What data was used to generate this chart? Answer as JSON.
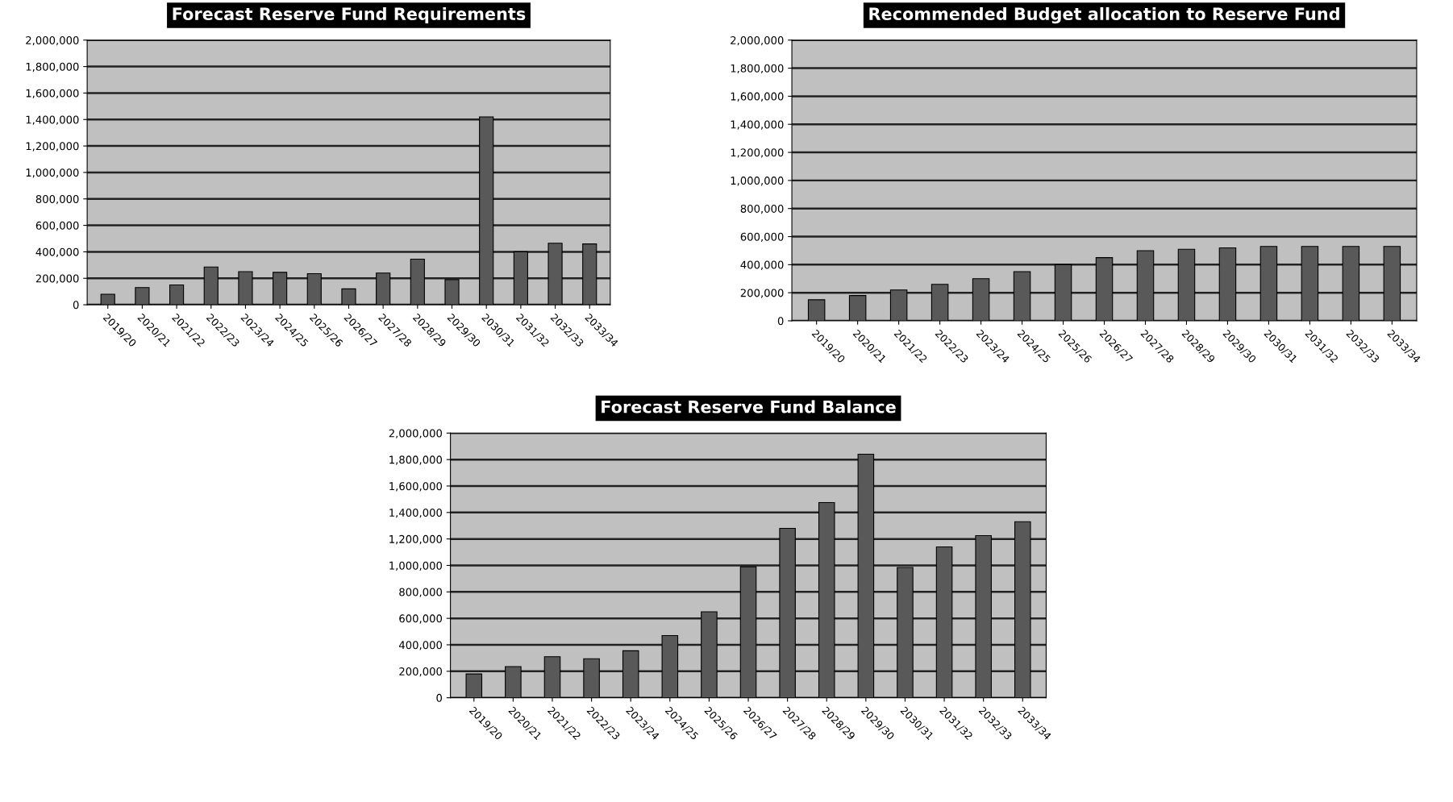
{
  "chart_data": [
    {
      "type": "bar",
      "title": "Forecast Reserve Fund Requirements",
      "categories": [
        "2019/20",
        "2020/21",
        "2021/22",
        "2022/23",
        "2023/24",
        "2024/25",
        "2025/26",
        "2026/27",
        "2027/28",
        "2028/29",
        "2029/30",
        "2030/31",
        "2031/32",
        "2032/33",
        "2033/34"
      ],
      "values": [
        80000,
        130000,
        150000,
        285000,
        250000,
        245000,
        235000,
        120000,
        240000,
        345000,
        190000,
        1420000,
        400000,
        465000,
        460000
      ],
      "color": "#595959",
      "ylim": [
        0,
        2000000
      ],
      "yticks": [
        {
          "value": 0,
          "label": "0"
        },
        {
          "value": 200000,
          "label": "200,000"
        },
        {
          "value": 400000,
          "label": "400,000"
        },
        {
          "value": 600000,
          "label": "600,000"
        },
        {
          "value": 800000,
          "label": "800,000"
        },
        {
          "value": 1000000,
          "label": "1,000,000"
        },
        {
          "value": 1200000,
          "label": "1,200,000"
        },
        {
          "value": 1400000,
          "label": "1,400,000"
        },
        {
          "value": 1600000,
          "label": "1,600,000"
        },
        {
          "value": 1800000,
          "label": "1,800,000"
        },
        {
          "value": 2000000,
          "label": "2,000,000"
        }
      ],
      "grid": "y"
    },
    {
      "type": "bar",
      "title": "Recommended Budget allocation to Reserve Fund",
      "categories": [
        "2019/20",
        "2020/21",
        "2021/22",
        "2022/23",
        "2023/24",
        "2024/25",
        "2025/26",
        "2026/27",
        "2027/28",
        "2028/29",
        "2029/30",
        "2030/31",
        "2031/32",
        "2032/33",
        "2033/34"
      ],
      "values": [
        150000,
        180000,
        220000,
        260000,
        300000,
        350000,
        400000,
        450000,
        500000,
        510000,
        520000,
        530000,
        530000,
        530000,
        530000
      ],
      "color": "#595959",
      "ylim": [
        0,
        2000000
      ],
      "yticks": [
        {
          "value": 0,
          "label": "0"
        },
        {
          "value": 200000,
          "label": "200,000"
        },
        {
          "value": 400000,
          "label": "400,000"
        },
        {
          "value": 600000,
          "label": "600,000"
        },
        {
          "value": 800000,
          "label": "800,000"
        },
        {
          "value": 1000000,
          "label": "1,000,000"
        },
        {
          "value": 1200000,
          "label": "1,200,000"
        },
        {
          "value": 1400000,
          "label": "1,400,000"
        },
        {
          "value": 1600000,
          "label": "1,600,000"
        },
        {
          "value": 1800000,
          "label": "1,800,000"
        },
        {
          "value": 2000000,
          "label": "2,000,000"
        }
      ],
      "grid": "y"
    },
    {
      "type": "bar",
      "title": "Forecast Reserve Fund Balance",
      "categories": [
        "2019/20",
        "2020/21",
        "2021/22",
        "2022/23",
        "2023/24",
        "2024/25",
        "2025/26",
        "2026/27",
        "2027/28",
        "2028/29",
        "2029/30",
        "2030/31",
        "2031/32",
        "2032/33",
        "2033/34"
      ],
      "values": [
        180000,
        235000,
        310000,
        295000,
        355000,
        470000,
        650000,
        990000,
        1280000,
        1475000,
        1840000,
        985000,
        1140000,
        1225000,
        1330000
      ],
      "color": "#595959",
      "ylim": [
        0,
        2000000
      ],
      "yticks": [
        {
          "value": 0,
          "label": "0"
        },
        {
          "value": 200000,
          "label": "200,000"
        },
        {
          "value": 400000,
          "label": "400,000"
        },
        {
          "value": 600000,
          "label": "600,000"
        },
        {
          "value": 800000,
          "label": "800,000"
        },
        {
          "value": 1000000,
          "label": "1,000,000"
        },
        {
          "value": 1200000,
          "label": "1,200,000"
        },
        {
          "value": 1400000,
          "label": "1,400,000"
        },
        {
          "value": 1600000,
          "label": "1,600,000"
        },
        {
          "value": 1800000,
          "label": "1,800,000"
        },
        {
          "value": 2000000,
          "label": "2,000,000"
        }
      ],
      "grid": "y"
    }
  ]
}
